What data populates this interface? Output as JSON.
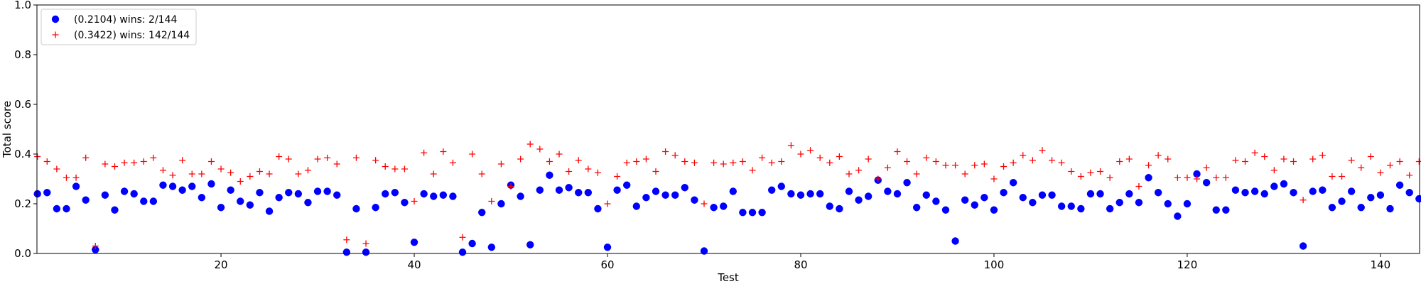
{
  "chart_data": {
    "type": "scatter",
    "xlabel": "Test",
    "ylabel": "Total score",
    "xlim": [
      1,
      144
    ],
    "ylim": [
      0.0,
      1.0
    ],
    "xticks": [
      20,
      40,
      60,
      80,
      100,
      120,
      140
    ],
    "yticks": [
      0.0,
      0.2,
      0.4,
      0.6,
      0.8,
      1.0
    ],
    "xtick_labels": [
      "20",
      "40",
      "60",
      "80",
      "100",
      "120",
      "140"
    ],
    "ytick_labels": [
      "0.0",
      "0.2",
      "0.4",
      "0.6",
      "0.8",
      "1.0"
    ],
    "grid": false,
    "legend_position": "top-left",
    "series": [
      {
        "name": "(0.2104) wins: 2/144",
        "marker": "circle",
        "color": "#0000ff",
        "x": [
          1,
          2,
          3,
          4,
          5,
          6,
          7,
          8,
          9,
          10,
          11,
          12,
          13,
          14,
          15,
          16,
          17,
          18,
          19,
          20,
          21,
          22,
          23,
          24,
          25,
          26,
          27,
          28,
          29,
          30,
          31,
          32,
          33,
          34,
          35,
          36,
          37,
          38,
          39,
          40,
          41,
          42,
          43,
          44,
          45,
          46,
          47,
          48,
          49,
          50,
          51,
          52,
          53,
          54,
          55,
          56,
          57,
          58,
          59,
          60,
          61,
          62,
          63,
          64,
          65,
          66,
          67,
          68,
          69,
          70,
          71,
          72,
          73,
          74,
          75,
          76,
          77,
          78,
          79,
          80,
          81,
          82,
          83,
          84,
          85,
          86,
          87,
          88,
          89,
          90,
          91,
          92,
          93,
          94,
          95,
          96,
          97,
          98,
          99,
          100,
          101,
          102,
          103,
          104,
          105,
          106,
          107,
          108,
          109,
          110,
          111,
          112,
          113,
          114,
          115,
          116,
          117,
          118,
          119,
          120,
          121,
          122,
          123,
          124,
          125,
          126,
          127,
          128,
          129,
          130,
          131,
          132,
          133,
          134,
          135,
          136,
          137,
          138,
          139,
          140,
          141,
          142,
          143,
          144
        ],
        "y": [
          0.24,
          0.245,
          0.18,
          0.18,
          0.27,
          0.215,
          0.015,
          0.235,
          0.175,
          0.25,
          0.24,
          0.21,
          0.21,
          0.275,
          0.27,
          0.255,
          0.27,
          0.225,
          0.28,
          0.185,
          0.255,
          0.21,
          0.195,
          0.245,
          0.17,
          0.225,
          0.245,
          0.24,
          0.205,
          0.25,
          0.25,
          0.235,
          0.005,
          0.18,
          0.005,
          0.185,
          0.24,
          0.245,
          0.205,
          0.045,
          0.24,
          0.23,
          0.235,
          0.23,
          0.005,
          0.04,
          0.165,
          0.025,
          0.2,
          0.275,
          0.23,
          0.035,
          0.255,
          0.315,
          0.255,
          0.265,
          0.245,
          0.245,
          0.18,
          0.025,
          0.255,
          0.275,
          0.19,
          0.225,
          0.25,
          0.235,
          0.235,
          0.265,
          0.215,
          0.01,
          0.185,
          0.19,
          0.25,
          0.165,
          0.165,
          0.165,
          0.255,
          0.27,
          0.24,
          0.235,
          0.24,
          0.24,
          0.19,
          0.18,
          0.25,
          0.215,
          0.23,
          0.295,
          0.25,
          0.24,
          0.285,
          0.185,
          0.235,
          0.21,
          0.175,
          0.05,
          0.215,
          0.195,
          0.225,
          0.175,
          0.245,
          0.285,
          0.225,
          0.205,
          0.235,
          0.235,
          0.19,
          0.19,
          0.18,
          0.24,
          0.24,
          0.18,
          0.205,
          0.24,
          0.205,
          0.305,
          0.245,
          0.2,
          0.15,
          0.2,
          0.32,
          0.285,
          0.175,
          0.175,
          0.255,
          0.245,
          0.25,
          0.24,
          0.27,
          0.28,
          0.245,
          0.03,
          0.25,
          0.255,
          0.185,
          0.21,
          0.25,
          0.185,
          0.225,
          0.235,
          0.18,
          0.275,
          0.245,
          0.22
        ]
      },
      {
        "name": "(0.3422) wins: 142/144",
        "marker": "plus",
        "color": "#ff0000",
        "x": [
          1,
          2,
          3,
          4,
          5,
          6,
          7,
          8,
          9,
          10,
          11,
          12,
          13,
          14,
          15,
          16,
          17,
          18,
          19,
          20,
          21,
          22,
          23,
          24,
          25,
          26,
          27,
          28,
          29,
          30,
          31,
          32,
          33,
          34,
          35,
          36,
          37,
          38,
          39,
          40,
          41,
          42,
          43,
          44,
          45,
          46,
          47,
          48,
          49,
          50,
          51,
          52,
          53,
          54,
          55,
          56,
          57,
          58,
          59,
          60,
          61,
          62,
          63,
          64,
          65,
          66,
          67,
          68,
          69,
          70,
          71,
          72,
          73,
          74,
          75,
          76,
          77,
          78,
          79,
          80,
          81,
          82,
          83,
          84,
          85,
          86,
          87,
          88,
          89,
          90,
          91,
          92,
          93,
          94,
          95,
          96,
          97,
          98,
          99,
          100,
          101,
          102,
          103,
          104,
          105,
          106,
          107,
          108,
          109,
          110,
          111,
          112,
          113,
          114,
          115,
          116,
          117,
          118,
          119,
          120,
          121,
          122,
          123,
          124,
          125,
          126,
          127,
          128,
          129,
          130,
          131,
          132,
          133,
          134,
          135,
          136,
          137,
          138,
          139,
          140,
          141,
          142,
          143,
          144
        ],
        "y": [
          0.39,
          0.37,
          0.34,
          0.305,
          0.305,
          0.385,
          0.03,
          0.36,
          0.35,
          0.365,
          0.365,
          0.37,
          0.385,
          0.335,
          0.315,
          0.375,
          0.32,
          0.32,
          0.37,
          0.34,
          0.325,
          0.29,
          0.31,
          0.33,
          0.32,
          0.39,
          0.38,
          0.32,
          0.335,
          0.38,
          0.385,
          0.36,
          0.055,
          0.385,
          0.04,
          0.375,
          0.35,
          0.34,
          0.34,
          0.21,
          0.405,
          0.32,
          0.41,
          0.365,
          0.065,
          0.4,
          0.32,
          0.21,
          0.36,
          0.27,
          0.38,
          0.44,
          0.42,
          0.37,
          0.4,
          0.33,
          0.375,
          0.34,
          0.325,
          0.2,
          0.31,
          0.365,
          0.37,
          0.38,
          0.33,
          0.41,
          0.395,
          0.37,
          0.365,
          0.2,
          0.365,
          0.36,
          0.365,
          0.37,
          0.335,
          0.385,
          0.365,
          0.37,
          0.435,
          0.4,
          0.415,
          0.385,
          0.365,
          0.39,
          0.32,
          0.335,
          0.38,
          0.3,
          0.345,
          0.41,
          0.37,
          0.32,
          0.385,
          0.37,
          0.355,
          0.355,
          0.32,
          0.355,
          0.36,
          0.3,
          0.35,
          0.365,
          0.395,
          0.375,
          0.415,
          0.375,
          0.365,
          0.33,
          0.31,
          0.325,
          0.33,
          0.305,
          0.37,
          0.38,
          0.27,
          0.355,
          0.395,
          0.38,
          0.305,
          0.305,
          0.3,
          0.345,
          0.305,
          0.305,
          0.375,
          0.37,
          0.405,
          0.39,
          0.335,
          0.38,
          0.37,
          0.215,
          0.38,
          0.395,
          0.31,
          0.31,
          0.375,
          0.345,
          0.39,
          0.325,
          0.355,
          0.37,
          0.315,
          0.37
        ]
      }
    ]
  },
  "colors": {
    "series_a": "#0000ff",
    "series_b": "#ff0000",
    "axis": "#000000",
    "legend_border": "#cccccc"
  }
}
